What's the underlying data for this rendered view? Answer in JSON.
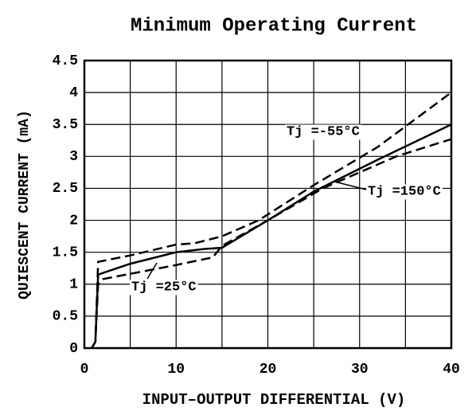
{
  "chart_data": {
    "type": "line",
    "title": "Minimum Operating Current",
    "x_label": "INPUT–OUTPUT DIFFERENTIAL (V)",
    "y_label": "QUIESCENT CURRENT (mA)",
    "xlim": [
      0,
      40
    ],
    "ylim": [
      0,
      4.5
    ],
    "xticks": [
      0,
      10,
      20,
      30,
      40
    ],
    "xminor_ticks": [
      5,
      15,
      25,
      35
    ],
    "yticks": [
      0,
      0.5,
      1.0,
      1.5,
      2.0,
      2.5,
      3.0,
      3.5,
      4.0,
      4.5
    ],
    "grid": true,
    "series": [
      {
        "name": "Tj =25°C",
        "color": "#000000",
        "dashed": false,
        "x": [
          0.8,
          1.2,
          1.5,
          5,
          10,
          13,
          15,
          20,
          25,
          32,
          40
        ],
        "values": [
          0,
          0.1,
          1.15,
          1.32,
          1.5,
          1.55,
          1.57,
          2.0,
          2.45,
          2.95,
          3.5
        ]
      },
      {
        "name": "Tj =-55°C",
        "color": "#000000",
        "dashed": true,
        "x": [
          0.8,
          1.2,
          1.5,
          5,
          10,
          12,
          15,
          19,
          25,
          32,
          40
        ],
        "values": [
          0,
          0.1,
          1.35,
          1.45,
          1.62,
          1.64,
          1.75,
          2.0,
          2.55,
          3.15,
          4.0
        ]
      },
      {
        "name": "Tj =150°C",
        "color": "#000000",
        "dashed": true,
        "x": [
          0.8,
          1.2,
          1.5,
          2,
          10,
          14,
          15,
          20,
          26,
          34,
          40
        ],
        "values": [
          0,
          0.1,
          1.0,
          1.08,
          1.3,
          1.42,
          1.6,
          2.0,
          2.5,
          3.0,
          3.27
        ]
      }
    ]
  }
}
